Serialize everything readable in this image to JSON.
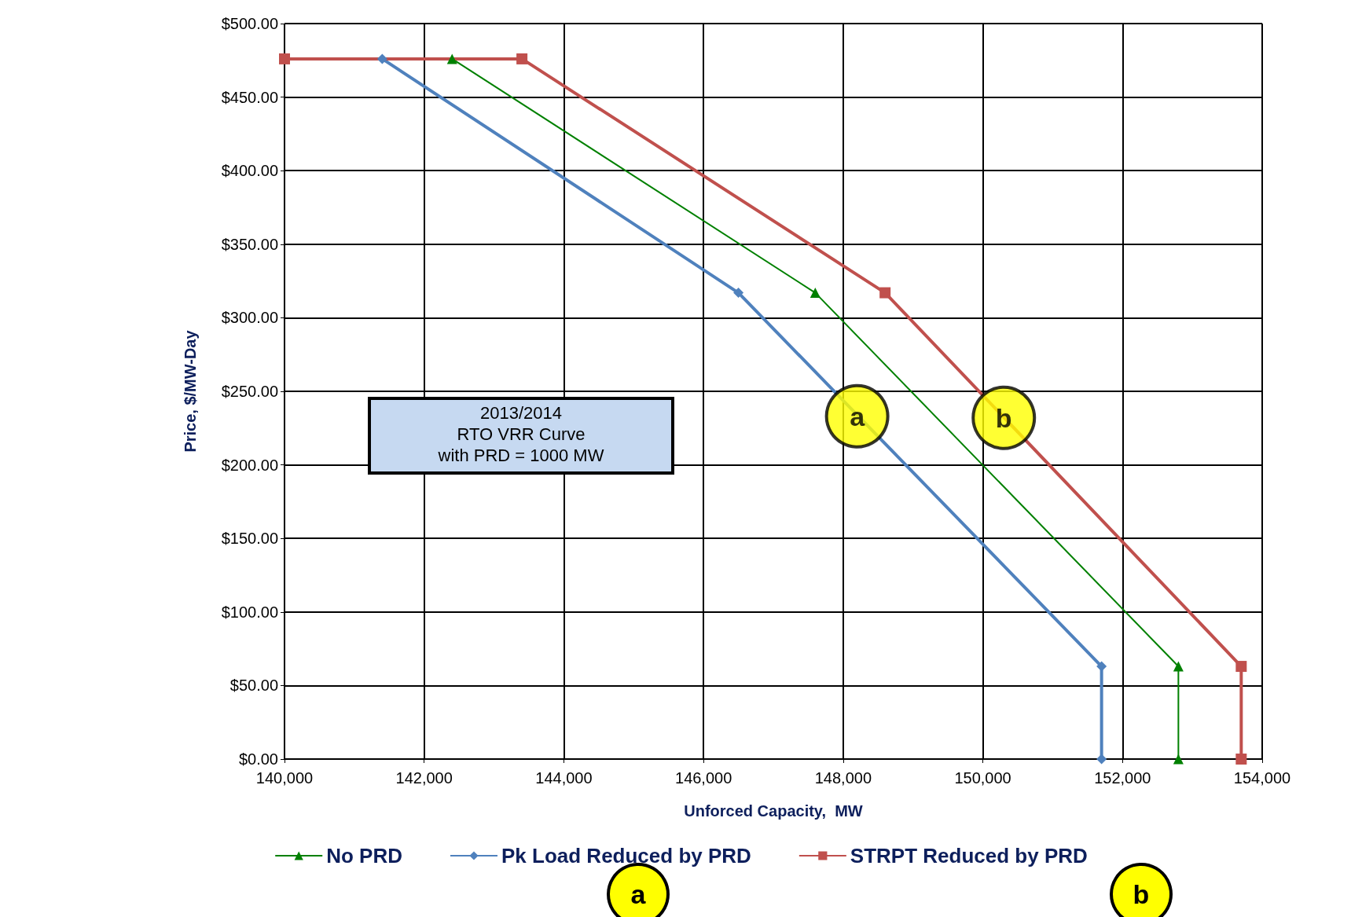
{
  "chart_data": {
    "type": "line",
    "xlabel": "Unforced Capacity,  MW",
    "ylabel": "Price, $/MW-Day",
    "xlim": [
      140000,
      154000
    ],
    "ylim": [
      0,
      500
    ],
    "xticks": [
      {
        "value": 140000,
        "label": "140,000"
      },
      {
        "value": 142000,
        "label": "142,000"
      },
      {
        "value": 144000,
        "label": "144,000"
      },
      {
        "value": 146000,
        "label": "146,000"
      },
      {
        "value": 148000,
        "label": "148,000"
      },
      {
        "value": 150000,
        "label": "150,000"
      },
      {
        "value": 152000,
        "label": "152,000"
      },
      {
        "value": 154000,
        "label": "154,000"
      }
    ],
    "yticks": [
      {
        "value": 0,
        "label": "$0.00"
      },
      {
        "value": 50,
        "label": "$50.00"
      },
      {
        "value": 100,
        "label": "$100.00"
      },
      {
        "value": 150,
        "label": "$150.00"
      },
      {
        "value": 200,
        "label": "$200.00"
      },
      {
        "value": 250,
        "label": "$250.00"
      },
      {
        "value": 300,
        "label": "$300.00"
      },
      {
        "value": 350,
        "label": "$350.00"
      },
      {
        "value": 400,
        "label": "$400.00"
      },
      {
        "value": 450,
        "label": "$450.00"
      },
      {
        "value": 500,
        "label": "$500.00"
      }
    ],
    "grid": true,
    "legend": "bottom",
    "series": [
      {
        "name": "No PRD",
        "color": "#008000",
        "marker": "triangle",
        "x": [
          142400,
          147600,
          152800,
          152800
        ],
        "values": [
          476,
          317,
          63,
          0
        ]
      },
      {
        "name": "Pk Load Reduced by PRD",
        "color": "#4f81bd",
        "marker": "diamond",
        "x": [
          141400,
          146500,
          151700,
          151700
        ],
        "values": [
          476,
          317,
          63,
          0
        ]
      },
      {
        "name": "STRPT Reduced by PRD",
        "color": "#c0504d",
        "marker": "square",
        "x": [
          140000,
          143400,
          148600,
          153700,
          153700
        ],
        "values": [
          476,
          476,
          317,
          63,
          0
        ]
      }
    ],
    "annotations": [
      "2013/2014\nRTO VRR Curve\nwith PRD = 1000 MW",
      {
        "text": "a",
        "x": 148200,
        "y": 233
      },
      {
        "text": "b",
        "x": 150300,
        "y": 232
      },
      "a",
      "b"
    ]
  }
}
